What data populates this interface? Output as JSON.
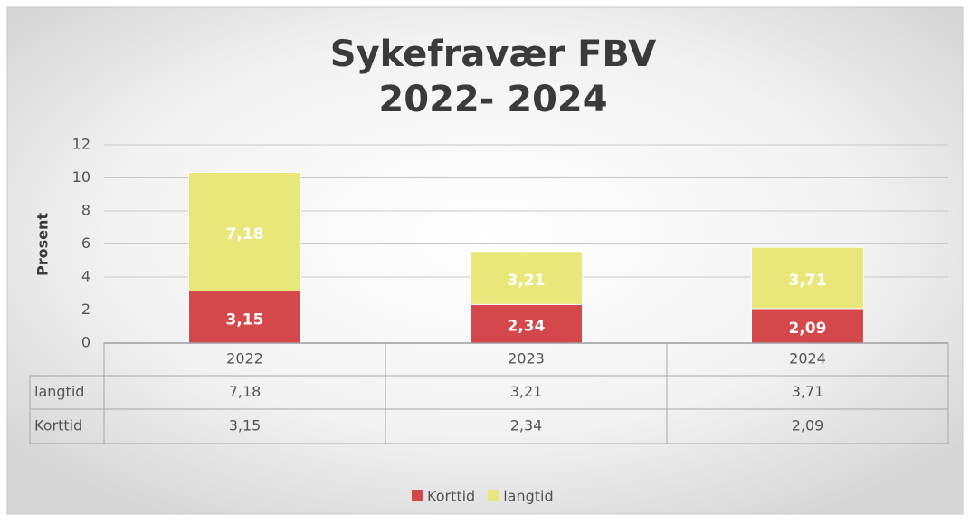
{
  "chart_data": {
    "type": "stacked_bar",
    "title": [
      "Sykefravær FBV",
      "2022- 2024"
    ],
    "y_label": "Prosent",
    "categories": [
      "2022",
      "2023",
      "2024"
    ],
    "series": [
      {
        "name": "Korttid",
        "color": "#d4474a",
        "values": [
          3.15,
          2.34,
          2.09
        ],
        "value_labels": [
          "3,15",
          "2,34",
          "2,09"
        ]
      },
      {
        "name": "langtid",
        "color": "#e9e77a",
        "values": [
          7.18,
          3.21,
          3.71
        ],
        "value_labels": [
          "7,18",
          "3,21",
          "3,71"
        ]
      }
    ],
    "ylim": [
      0,
      12
    ],
    "yticks": [
      0,
      2,
      4,
      6,
      8,
      10,
      12
    ],
    "grid": true,
    "legend": "bottom"
  }
}
